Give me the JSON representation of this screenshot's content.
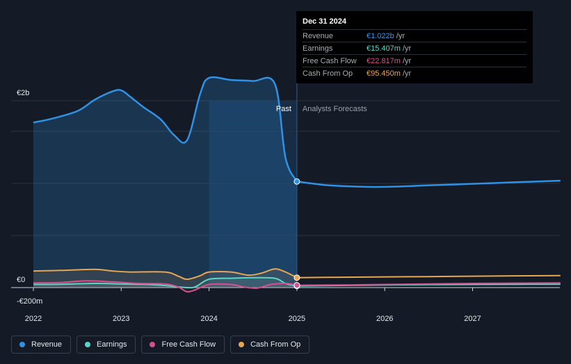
{
  "chart_data": {
    "type": "line",
    "y_axis": {
      "top_label": "€2b",
      "zero_label": "€0",
      "bottom_label": "-€200m",
      "ylim": [
        -200,
        2000
      ],
      "unit": "€m"
    },
    "x_ticks": [
      "2022",
      "2023",
      "2024",
      "2025",
      "2026",
      "2027"
    ],
    "regions": {
      "past_label": "Past",
      "forecast_label": "Analysts Forecasts",
      "divider_x": 2025.0,
      "past_shade_start": 2024.0
    },
    "series": [
      {
        "name": "Revenue",
        "color": "#2e93e6",
        "points": [
          [
            2022.0,
            1590
          ],
          [
            2022.2,
            1625
          ],
          [
            2022.5,
            1700
          ],
          [
            2022.7,
            1810
          ],
          [
            2022.9,
            1890
          ],
          [
            2023.0,
            1900
          ],
          [
            2023.1,
            1840
          ],
          [
            2023.25,
            1740
          ],
          [
            2023.45,
            1620
          ],
          [
            2023.6,
            1470
          ],
          [
            2023.75,
            1420
          ],
          [
            2023.9,
            1870
          ],
          [
            2024.0,
            2020
          ],
          [
            2024.25,
            2000
          ],
          [
            2024.5,
            1990
          ],
          [
            2024.75,
            1960
          ],
          [
            2024.87,
            1250
          ],
          [
            2025.0,
            1022
          ],
          [
            2025.3,
            990
          ],
          [
            2025.6,
            975
          ],
          [
            2026.0,
            970
          ],
          [
            2026.5,
            985
          ],
          [
            2027.0,
            1000
          ],
          [
            2027.5,
            1015
          ],
          [
            2028.0,
            1030
          ]
        ]
      },
      {
        "name": "Earnings",
        "color": "#5ad6c9",
        "points": [
          [
            2022.0,
            30
          ],
          [
            2022.3,
            32
          ],
          [
            2022.7,
            40
          ],
          [
            2023.0,
            35
          ],
          [
            2023.3,
            30
          ],
          [
            2023.5,
            20
          ],
          [
            2023.75,
            0
          ],
          [
            2023.85,
            10
          ],
          [
            2024.0,
            80
          ],
          [
            2024.25,
            90
          ],
          [
            2024.5,
            95
          ],
          [
            2024.75,
            90
          ],
          [
            2024.87,
            40
          ],
          [
            2025.0,
            15.4
          ],
          [
            2025.5,
            20
          ],
          [
            2026.0,
            25
          ],
          [
            2026.5,
            28
          ],
          [
            2027.0,
            30
          ],
          [
            2028.0,
            32
          ]
        ]
      },
      {
        "name": "Free Cash Flow",
        "color": "#d6508f",
        "points": [
          [
            2022.0,
            45
          ],
          [
            2022.3,
            48
          ],
          [
            2022.6,
            65
          ],
          [
            2022.9,
            55
          ],
          [
            2023.2,
            40
          ],
          [
            2023.5,
            35
          ],
          [
            2023.65,
            5
          ],
          [
            2023.75,
            -40
          ],
          [
            2023.85,
            -20
          ],
          [
            2024.0,
            30
          ],
          [
            2024.25,
            30
          ],
          [
            2024.4,
            5
          ],
          [
            2024.55,
            -5
          ],
          [
            2024.7,
            30
          ],
          [
            2024.87,
            40
          ],
          [
            2025.0,
            22.8
          ],
          [
            2025.5,
            25
          ],
          [
            2026.0,
            30
          ],
          [
            2026.5,
            35
          ],
          [
            2027.0,
            40
          ],
          [
            2028.0,
            45
          ]
        ]
      },
      {
        "name": "Cash From Op",
        "color": "#e8a651",
        "points": [
          [
            2022.0,
            160
          ],
          [
            2022.3,
            165
          ],
          [
            2022.7,
            175
          ],
          [
            2022.9,
            160
          ],
          [
            2023.1,
            150
          ],
          [
            2023.5,
            150
          ],
          [
            2023.65,
            110
          ],
          [
            2023.75,
            80
          ],
          [
            2023.9,
            115
          ],
          [
            2024.0,
            150
          ],
          [
            2024.25,
            150
          ],
          [
            2024.45,
            120
          ],
          [
            2024.6,
            140
          ],
          [
            2024.75,
            180
          ],
          [
            2024.87,
            150
          ],
          [
            2025.0,
            95.45
          ],
          [
            2025.5,
            100
          ],
          [
            2026.0,
            103
          ],
          [
            2026.5,
            106
          ],
          [
            2027.0,
            110
          ],
          [
            2028.0,
            115
          ]
        ]
      }
    ]
  },
  "tooltip": {
    "date": "Dec 31 2024",
    "rows": [
      {
        "name": "Revenue",
        "value": "€1.022b",
        "unit": "/yr",
        "color": "#2e93e6"
      },
      {
        "name": "Earnings",
        "value": "€15.407m",
        "unit": "/yr",
        "color": "#5ad6c9"
      },
      {
        "name": "Free Cash Flow",
        "value": "€22.817m",
        "unit": "/yr",
        "color": "#d6508f"
      },
      {
        "name": "Cash From Op",
        "value": "€95.450m",
        "unit": "/yr",
        "color": "#e8a651"
      }
    ]
  },
  "legend": [
    {
      "label": "Revenue",
      "color": "#2e93e6"
    },
    {
      "label": "Earnings",
      "color": "#5ad6c9"
    },
    {
      "label": "Free Cash Flow",
      "color": "#d6508f"
    },
    {
      "label": "Cash From Op",
      "color": "#e8a651"
    }
  ]
}
